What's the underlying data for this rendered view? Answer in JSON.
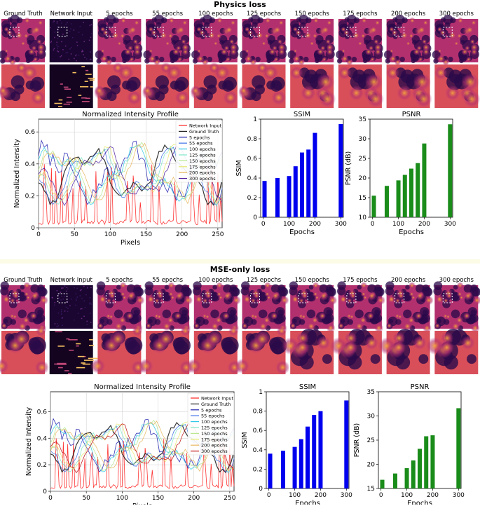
{
  "panels": [
    {
      "title": "Physics loss",
      "columns": [
        "Ground Truth",
        "Network Input",
        "5 epochs",
        "55 epochs",
        "100 epochs",
        "125 epochs",
        "150 epochs",
        "175 epochs",
        "200 epochs",
        "300 epochs"
      ]
    },
    {
      "title": "MSE-only loss",
      "columns": [
        "Ground Truth",
        "Network Input",
        "5 epochs",
        "55 epochs",
        "100 epochs",
        "125 epochs",
        "150 epochs",
        "175 epochs",
        "200 epochs",
        "300 epochs"
      ]
    }
  ],
  "colors": {
    "magma_dark": "#2a0a4a",
    "magma_mid": "#b3306f",
    "magma_bright": "#f7a33b",
    "bar_ssim": "#0000ee",
    "bar_psnr": "#1a8c1a",
    "roi_box": "#ffffff"
  },
  "chart_data": [
    {
      "id": "physics-profile",
      "type": "line",
      "title": "Normalized Intensity Profile",
      "xlabel": "Pixels",
      "ylabel": "Normalized Intensity",
      "xlim": [
        0,
        256
      ],
      "ylim": [
        0,
        0.68
      ],
      "xticks": [
        0,
        50,
        100,
        150,
        200,
        250
      ],
      "yticks": [
        0.0,
        0.2,
        0.4,
        0.6
      ],
      "grid": true,
      "legend": "upper right",
      "series": [
        {
          "name": "Network Input",
          "color": "#ff2020"
        },
        {
          "name": "Ground Truth",
          "color": "#202020"
        },
        {
          "name": "5 epochs",
          "color": "#1f1fb0"
        },
        {
          "name": "55 epochs",
          "color": "#3a6ee8"
        },
        {
          "name": "100 epochs",
          "color": "#30c8e8"
        },
        {
          "name": "125 epochs",
          "color": "#7fe8c8"
        },
        {
          "name": "150 epochs",
          "color": "#b8e890"
        },
        {
          "name": "175 epochs",
          "color": "#e8e870"
        },
        {
          "name": "200 epochs",
          "color": "#e8b860"
        },
        {
          "name": "300 epochs",
          "color": "#5020a0"
        }
      ]
    },
    {
      "id": "physics-ssim",
      "type": "bar",
      "title": "SSIM",
      "xlabel": "Epochs",
      "ylabel": "SSIM",
      "xlim": [
        -10,
        310
      ],
      "ylim": [
        0,
        1.0
      ],
      "xticks": [
        0,
        100,
        200,
        300
      ],
      "yticks": [
        0.0,
        0.2,
        0.4,
        0.6,
        0.8,
        1.0
      ],
      "x": [
        5,
        55,
        100,
        125,
        150,
        175,
        200,
        300
      ],
      "values": [
        0.37,
        0.4,
        0.42,
        0.52,
        0.66,
        0.69,
        0.86,
        0.95
      ]
    },
    {
      "id": "physics-psnr",
      "type": "bar",
      "title": "PSNR",
      "xlabel": "Epochs",
      "ylabel": "PSNR (dB)",
      "xlim": [
        -10,
        310
      ],
      "ylim": [
        10,
        35
      ],
      "xticks": [
        0,
        100,
        200,
        300
      ],
      "yticks": [
        10,
        15,
        20,
        25,
        30,
        35
      ],
      "x": [
        5,
        55,
        100,
        125,
        150,
        175,
        200,
        300
      ],
      "values": [
        15.5,
        18.0,
        19.4,
        20.8,
        22.4,
        23.8,
        28.8,
        33.7
      ]
    },
    {
      "id": "mse-profile",
      "type": "line",
      "title": "Normalized Intensity Profile",
      "xlabel": "Pixels",
      "ylabel": "Normalized Intensity",
      "xlim": [
        0,
        256
      ],
      "ylim": [
        0,
        0.75
      ],
      "xticks": [
        0,
        50,
        100,
        150,
        200,
        250
      ],
      "yticks": [
        0.0,
        0.2,
        0.4,
        0.6
      ],
      "grid": true,
      "legend": "upper right",
      "series": [
        {
          "name": "Network Input",
          "color": "#ff2020"
        },
        {
          "name": "Ground Truth",
          "color": "#202020"
        },
        {
          "name": "5 epochs",
          "color": "#1f1fb0"
        },
        {
          "name": "55 epochs",
          "color": "#3a6ee8"
        },
        {
          "name": "100 epochs",
          "color": "#30c8e8"
        },
        {
          "name": "125 epochs",
          "color": "#7fe8c8"
        },
        {
          "name": "150 epochs",
          "color": "#b8e890"
        },
        {
          "name": "175 epochs",
          "color": "#e8e870"
        },
        {
          "name": "200 epochs",
          "color": "#e8b860"
        },
        {
          "name": "300 epochs",
          "color": "#c01010"
        }
      ]
    },
    {
      "id": "mse-ssim",
      "type": "bar",
      "title": "SSIM",
      "xlabel": "Epochs",
      "ylabel": "SSIM",
      "xlim": [
        -10,
        310
      ],
      "ylim": [
        0,
        1.0
      ],
      "xticks": [
        0,
        100,
        200,
        300
      ],
      "yticks": [
        0.0,
        0.2,
        0.4,
        0.6,
        0.8,
        1.0
      ],
      "x": [
        5,
        55,
        100,
        125,
        150,
        175,
        200,
        300
      ],
      "values": [
        0.36,
        0.39,
        0.43,
        0.51,
        0.64,
        0.76,
        0.8,
        0.91
      ]
    },
    {
      "id": "mse-psnr",
      "type": "bar",
      "title": "PSNR",
      "xlabel": "Epochs",
      "ylabel": "PSNR (dB)",
      "xlim": [
        -10,
        310
      ],
      "ylim": [
        15,
        35
      ],
      "xticks": [
        0,
        100,
        200,
        300
      ],
      "yticks": [
        15,
        20,
        25,
        30,
        35
      ],
      "x": [
        5,
        55,
        100,
        125,
        150,
        175,
        200,
        300
      ],
      "values": [
        16.8,
        18.1,
        19.2,
        20.8,
        23.2,
        25.8,
        26.0,
        31.6
      ]
    }
  ]
}
